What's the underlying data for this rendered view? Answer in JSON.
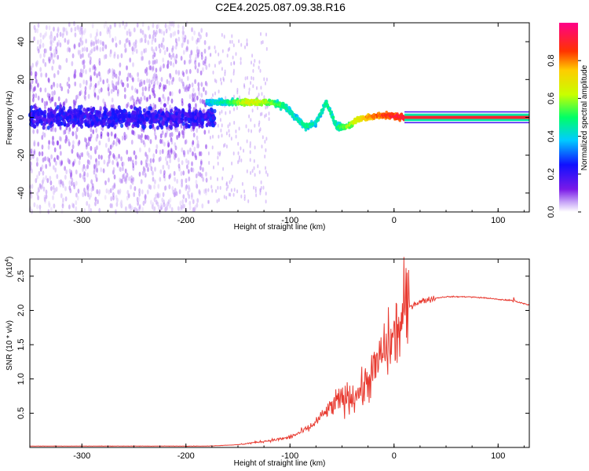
{
  "title": "C2E4.2025.087.09.38.R16",
  "chart_data": [
    {
      "type": "heatmap",
      "name": "spectrogram",
      "xlabel": "Height of straight line (km)",
      "ylabel": "Frequency (Hz)",
      "xlim": [
        -350,
        130
      ],
      "ylim": [
        -50,
        50
      ],
      "xticks": [
        -300,
        -200,
        -100,
        0,
        100
      ],
      "yticks": [
        -40,
        -20,
        0,
        20,
        40
      ],
      "colorbar": {
        "label": "Normalized spectral amplitude",
        "range": [
          0,
          1
        ],
        "ticks": [
          0.0,
          0.2,
          0.4,
          0.6,
          0.8
        ],
        "tick_labels": [
          "0.0",
          "0.2",
          "0.4",
          "0.6",
          "0.8"
        ]
      },
      "ridge": {
        "x": [
          -180,
          -160,
          -140,
          -120,
          -105,
          -95,
          -85,
          -75,
          -65,
          -55,
          -45,
          -35,
          -25,
          -15,
          -5,
          10,
          130
        ],
        "freq": [
          8,
          8,
          8,
          8,
          6,
          0,
          -5,
          -3,
          8,
          -5,
          -5,
          -1,
          0,
          1,
          1,
          0,
          0
        ],
        "amplitude": [
          0.4,
          0.5,
          0.7,
          0.6,
          0.5,
          0.45,
          0.5,
          0.45,
          0.5,
          0.5,
          0.6,
          0.7,
          0.8,
          0.85,
          0.9,
          0.95,
          0.98
        ]
      },
      "noise_region": {
        "x": [
          -350,
          -180
        ],
        "freq_spread": 50,
        "amplitude": 0.15
      }
    },
    {
      "type": "line",
      "name": "snr",
      "xlabel": "Height of straight line (km)",
      "ylabel": "SNR (10 * v/v)",
      "y_multiplier": "(x10",
      "y_multiplier_exp": "4",
      "y_multiplier_close": ")",
      "xlim": [
        -350,
        130
      ],
      "ylim": [
        0,
        2.75
      ],
      "xticks": [
        -300,
        -200,
        -100,
        0,
        100
      ],
      "yticks": [
        0.5,
        1.0,
        1.5,
        2.0,
        2.5
      ],
      "ytick_labels": [
        "0.5",
        "1.0",
        "1.5",
        "2.0",
        "2.5"
      ],
      "series": [
        {
          "name": "SNR",
          "color": "#e83a30",
          "x": [
            -350,
            -250,
            -180,
            -150,
            -130,
            -110,
            -100,
            -90,
            -80,
            -70,
            -60,
            -50,
            -40,
            -30,
            -20,
            -10,
            0,
            10,
            15,
            20,
            30,
            40,
            50,
            60,
            70,
            80,
            90,
            100,
            110,
            115,
            120,
            130
          ],
          "y": [
            0.02,
            0.02,
            0.02,
            0.04,
            0.08,
            0.12,
            0.15,
            0.22,
            0.3,
            0.45,
            0.6,
            0.7,
            0.75,
            0.85,
            1.1,
            1.4,
            1.6,
            1.9,
            2.05,
            2.1,
            2.15,
            2.18,
            2.2,
            2.2,
            2.2,
            2.19,
            2.18,
            2.16,
            2.15,
            2.14,
            2.12,
            2.08
          ]
        }
      ]
    }
  ]
}
